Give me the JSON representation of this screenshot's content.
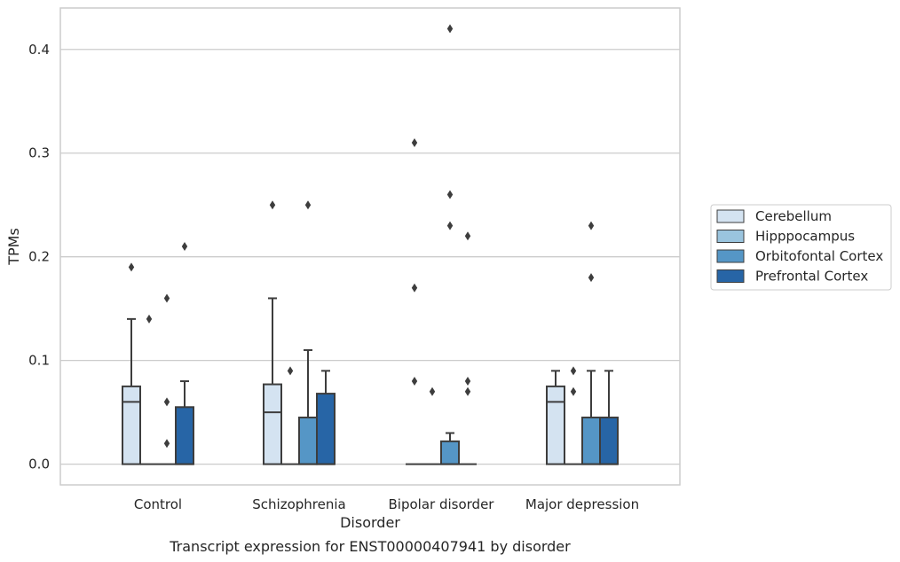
{
  "chart_data": {
    "type": "box",
    "title": "",
    "caption": "Transcript expression for ENST00000407941 by disorder",
    "xlabel": "Disorder",
    "ylabel": "TPMs",
    "ylim": [
      -0.02,
      0.44
    ],
    "yticks": [
      0.0,
      0.1,
      0.2,
      0.3,
      0.4
    ],
    "ytick_labels": [
      "0.0",
      "0.1",
      "0.2",
      "0.3",
      "0.4"
    ],
    "grid": "horizontal",
    "legend_position": "right",
    "categories": [
      "Control",
      "Schizophrenia",
      "Bipolar disorder",
      "Major depression"
    ],
    "series": [
      {
        "name": "Cerebellum",
        "color": "#d4e3f1",
        "boxes": [
          {
            "whislo": 0.0,
            "q1": 0.0,
            "med": 0.06,
            "q3": 0.075,
            "whishi": 0.14,
            "fliers": [
              0.19
            ]
          },
          {
            "whislo": 0.0,
            "q1": 0.0,
            "med": 0.05,
            "q3": 0.077,
            "whishi": 0.16,
            "fliers": [
              0.25
            ]
          },
          {
            "whislo": 0.0,
            "q1": 0.0,
            "med": 0.0,
            "q3": 0.0,
            "whishi": 0.0,
            "fliers": [
              0.31,
              0.17,
              0.08
            ]
          },
          {
            "whislo": 0.0,
            "q1": 0.0,
            "med": 0.06,
            "q3": 0.075,
            "whishi": 0.09,
            "fliers": []
          }
        ]
      },
      {
        "name": "Hipppocampus",
        "color": "#9ac4de",
        "boxes": [
          {
            "whislo": 0.0,
            "q1": 0.0,
            "med": 0.0,
            "q3": 0.0,
            "whishi": 0.0,
            "fliers": [
              0.14
            ]
          },
          {
            "whislo": 0.0,
            "q1": 0.0,
            "med": 0.0,
            "q3": 0.0,
            "whishi": 0.0,
            "fliers": [
              0.09
            ]
          },
          {
            "whislo": 0.0,
            "q1": 0.0,
            "med": 0.0,
            "q3": 0.0,
            "whishi": 0.0,
            "fliers": [
              0.07
            ]
          },
          {
            "whislo": 0.0,
            "q1": 0.0,
            "med": 0.0,
            "q3": 0.0,
            "whishi": 0.0,
            "fliers": [
              0.09,
              0.07
            ]
          }
        ]
      },
      {
        "name": "Orbitofontal Cortex",
        "color": "#5596c6",
        "boxes": [
          {
            "whislo": 0.0,
            "q1": 0.0,
            "med": 0.0,
            "q3": 0.0,
            "whishi": 0.0,
            "fliers": [
              0.16,
              0.06,
              0.02
            ]
          },
          {
            "whislo": 0.0,
            "q1": 0.0,
            "med": 0.0,
            "q3": 0.045,
            "whishi": 0.11,
            "fliers": [
              0.25
            ]
          },
          {
            "whislo": 0.0,
            "q1": 0.0,
            "med": 0.0,
            "q3": 0.022,
            "whishi": 0.03,
            "fliers": [
              0.42,
              0.26,
              0.23
            ]
          },
          {
            "whislo": 0.0,
            "q1": 0.0,
            "med": 0.0,
            "q3": 0.045,
            "whishi": 0.09,
            "fliers": [
              0.23,
              0.18
            ]
          }
        ]
      },
      {
        "name": "Prefrontal Cortex",
        "color": "#2765a6",
        "boxes": [
          {
            "whislo": 0.0,
            "q1": 0.0,
            "med": 0.0,
            "q3": 0.055,
            "whishi": 0.08,
            "fliers": [
              0.21
            ]
          },
          {
            "whislo": 0.0,
            "q1": 0.0,
            "med": 0.0,
            "q3": 0.068,
            "whishi": 0.09,
            "fliers": []
          },
          {
            "whislo": 0.0,
            "q1": 0.0,
            "med": 0.0,
            "q3": 0.0,
            "whishi": 0.0,
            "fliers": [
              0.22,
              0.08,
              0.07
            ]
          },
          {
            "whislo": 0.0,
            "q1": 0.0,
            "med": 0.0,
            "q3": 0.045,
            "whishi": 0.09,
            "fliers": []
          }
        ]
      }
    ]
  }
}
